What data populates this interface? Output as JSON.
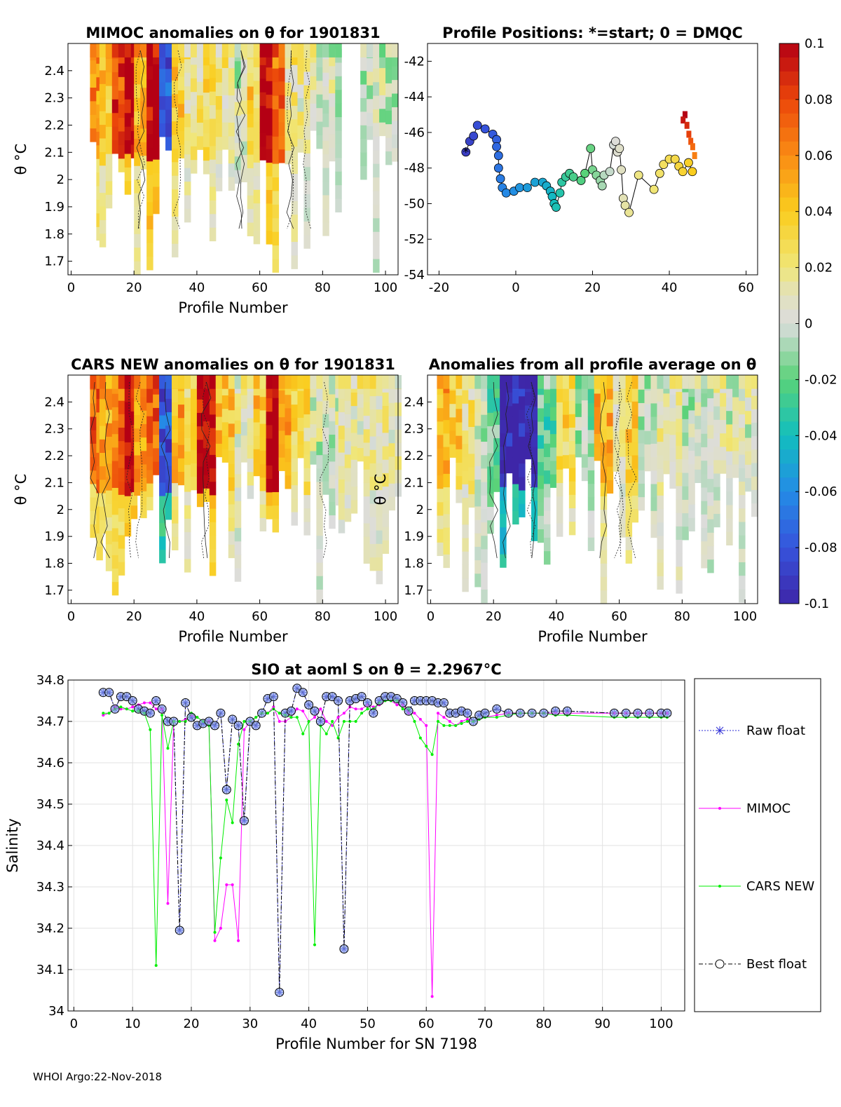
{
  "footer": "WHOI Argo:22-Nov-2018",
  "colorbar": {
    "ticks": [
      "0.1",
      "0.08",
      "0.06",
      "0.04",
      "0.02",
      "0",
      "-0.02",
      "-0.04",
      "-0.06",
      "-0.08",
      "-0.1"
    ],
    "range": [
      -0.1,
      0.1
    ]
  },
  "chart_data": [
    {
      "type": "heatmap",
      "title": "MIMOC anomalies on θ  for 1901831",
      "xlabel": "Profile Number",
      "ylabel": "θ °C",
      "xlim": [
        -1,
        104
      ],
      "ylim": [
        1.65,
        2.5
      ],
      "xticks": [
        "0",
        "20",
        "40",
        "60",
        "80",
        "100"
      ],
      "yticks": [
        "1.7",
        "1.8",
        "1.9",
        "2",
        "2.1",
        "2.2",
        "2.3",
        "2.4"
      ],
      "columns": [
        {
          "range": [
            6,
            9
          ],
          "value": 0.06
        },
        {
          "range": [
            9,
            13
          ],
          "value": 0.04
        },
        {
          "range": [
            13,
            17
          ],
          "value": 0.08
        },
        {
          "range": [
            17,
            20
          ],
          "value": 0.1
        },
        {
          "range": [
            20,
            24
          ],
          "value": 0.05
        },
        {
          "range": [
            24,
            28
          ],
          "value": 0.1
        },
        {
          "range": [
            28,
            32
          ],
          "value": -0.08
        },
        {
          "range": [
            32,
            36
          ],
          "value": 0.04
        },
        {
          "range": [
            36,
            42
          ],
          "value": 0.02
        },
        {
          "range": [
            42,
            46
          ],
          "value": 0.03
        },
        {
          "range": [
            46,
            52
          ],
          "value": 0.02
        },
        {
          "range": [
            52,
            56
          ],
          "value": 0.0
        },
        {
          "range": [
            56,
            60
          ],
          "value": 0.035
        },
        {
          "range": [
            60,
            64
          ],
          "value": 0.1
        },
        {
          "range": [
            64,
            68
          ],
          "value": 0.07
        },
        {
          "range": [
            68,
            72
          ],
          "value": 0.02
        },
        {
          "range": [
            72,
            78
          ],
          "value": 0.01
        },
        {
          "range": [
            78,
            85
          ],
          "value": 0.0
        },
        {
          "range": [
            92,
            104
          ],
          "value": 0.0
        }
      ]
    },
    {
      "type": "scatter",
      "title": "Profile Positions: *=start; 0 = DMQC",
      "xlim": [
        -23,
        63
      ],
      "ylim": [
        -54,
        -41
      ],
      "xticks": [
        "-20",
        "0",
        "20",
        "40",
        "60"
      ],
      "yticks": [
        "-42",
        "-44",
        "-46",
        "-48",
        "-50",
        "-52",
        "-54"
      ],
      "points": [
        [
          -13,
          -47.1
        ],
        [
          -12,
          -46.5
        ],
        [
          -11,
          -46.2
        ],
        [
          -10,
          -45.6
        ],
        [
          -8,
          -45.8
        ],
        [
          -6,
          -46.1
        ],
        [
          -5,
          -46.4
        ],
        [
          -5,
          -46.8
        ],
        [
          -4.5,
          -47.3
        ],
        [
          -4.5,
          -48
        ],
        [
          -4,
          -48.6
        ],
        [
          -3.5,
          -49.1
        ],
        [
          -2.5,
          -49.4
        ],
        [
          -0.5,
          -49.3
        ],
        [
          1,
          -49.1
        ],
        [
          3,
          -49.1
        ],
        [
          5,
          -48.8
        ],
        [
          7,
          -48.8
        ],
        [
          8,
          -49
        ],
        [
          9,
          -49.3
        ],
        [
          9.5,
          -49.6
        ],
        [
          10,
          -50
        ],
        [
          10.5,
          -50.2
        ],
        [
          11.5,
          -49.4
        ],
        [
          12,
          -48.8
        ],
        [
          13,
          -48.5
        ],
        [
          14,
          -48.3
        ],
        [
          15,
          -48.5
        ],
        [
          17,
          -48.7
        ],
        [
          18,
          -48.3
        ],
        [
          19.5,
          -46.9
        ],
        [
          20,
          -48.1
        ],
        [
          21,
          -48.4
        ],
        [
          22,
          -48.7
        ],
        [
          22.5,
          -49
        ],
        [
          23,
          -48.4
        ],
        [
          24.5,
          -48.2
        ],
        [
          25.5,
          -46.7
        ],
        [
          26,
          -46.5
        ],
        [
          26.5,
          -47.1
        ],
        [
          27,
          -46.9
        ],
        [
          27.5,
          -48.1
        ],
        [
          28,
          -49.7
        ],
        [
          28.5,
          -50.1
        ],
        [
          29.5,
          -50.5
        ],
        [
          32,
          -48.4
        ],
        [
          36,
          -49.2
        ],
        [
          37.5,
          -48.3
        ],
        [
          38.5,
          -47.8
        ],
        [
          40,
          -47.5
        ],
        [
          41.5,
          -47.5
        ],
        [
          42.5,
          -47.9
        ],
        [
          43.5,
          -48.2
        ],
        [
          45,
          -47.7
        ],
        [
          46,
          -48.2
        ]
      ]
    },
    {
      "type": "heatmap",
      "title": "CARS NEW anomalies on θ for 1901831",
      "xlabel": "Profile Number",
      "ylabel": "θ °C",
      "xlim": [
        -1,
        104
      ],
      "ylim": [
        1.65,
        2.5
      ],
      "xticks": [
        "0",
        "20",
        "40",
        "60",
        "80",
        "100"
      ],
      "yticks": [
        "1.7",
        "1.8",
        "1.9",
        "2",
        "2.1",
        "2.2",
        "2.3",
        "2.4"
      ],
      "columns": [
        {
          "range": [
            6,
            9
          ],
          "value": 0.07
        },
        {
          "range": [
            9,
            13
          ],
          "value": 0.05
        },
        {
          "range": [
            13,
            17
          ],
          "value": 0.07
        },
        {
          "range": [
            17,
            20
          ],
          "value": 0.1
        },
        {
          "range": [
            20,
            24
          ],
          "value": 0.06
        },
        {
          "range": [
            24,
            28
          ],
          "value": 0.07
        },
        {
          "range": [
            28,
            32
          ],
          "value": -0.08
        },
        {
          "range": [
            32,
            36
          ],
          "value": 0.05
        },
        {
          "range": [
            36,
            40
          ],
          "value": 0.03
        },
        {
          "range": [
            40,
            46
          ],
          "value": 0.1
        },
        {
          "range": [
            46,
            52
          ],
          "value": 0.04
        },
        {
          "range": [
            52,
            58
          ],
          "value": 0.01
        },
        {
          "range": [
            58,
            62
          ],
          "value": 0.04
        },
        {
          "range": [
            62,
            66
          ],
          "value": 0.1
        },
        {
          "range": [
            66,
            70
          ],
          "value": 0.05
        },
        {
          "range": [
            70,
            76
          ],
          "value": 0.025
        },
        {
          "range": [
            76,
            85
          ],
          "value": 0.0
        },
        {
          "range": [
            85,
            104
          ],
          "value": 0.015
        }
      ]
    },
    {
      "type": "heatmap",
      "title": "Anomalies from all profile average on θ",
      "xlabel": "Profile Number",
      "ylabel": "θ °C",
      "xlim": [
        -1,
        104
      ],
      "ylim": [
        1.65,
        2.5
      ],
      "xticks": [
        "0",
        "20",
        "40",
        "60",
        "80",
        "100"
      ],
      "yticks": [
        "1.7",
        "1.8",
        "1.9",
        "2",
        "2.1",
        "2.2",
        "2.3",
        "2.4"
      ],
      "columns": [
        {
          "range": [
            2,
            6
          ],
          "value": 0.05
        },
        {
          "range": [
            6,
            10
          ],
          "value": 0.035
        },
        {
          "range": [
            10,
            14
          ],
          "value": 0.02
        },
        {
          "range": [
            14,
            18
          ],
          "value": 0.0
        },
        {
          "range": [
            18,
            22
          ],
          "value": -0.02
        },
        {
          "range": [
            22,
            26
          ],
          "value": -0.1
        },
        {
          "range": [
            26,
            30
          ],
          "value": -0.1
        },
        {
          "range": [
            30,
            34
          ],
          "value": -0.1
        },
        {
          "range": [
            34,
            40
          ],
          "value": -0.02
        },
        {
          "range": [
            40,
            46
          ],
          "value": 0.03
        },
        {
          "range": [
            46,
            52
          ],
          "value": -0.01
        },
        {
          "range": [
            52,
            58
          ],
          "value": 0.045
        },
        {
          "range": [
            58,
            62
          ],
          "value": 0.01
        },
        {
          "range": [
            62,
            66
          ],
          "value": 0.035
        },
        {
          "range": [
            66,
            72
          ],
          "value": 0.0
        },
        {
          "range": [
            72,
            80
          ],
          "value": 0.01
        },
        {
          "range": [
            80,
            90
          ],
          "value": 0.0
        },
        {
          "range": [
            90,
            104
          ],
          "value": 0.005
        }
      ]
    },
    {
      "type": "line",
      "title": "SIO at aoml S on θ = 2.2967°C",
      "xlabel": "Profile Number for SN 7198",
      "ylabel": "Salinity",
      "xlim": [
        -1,
        104
      ],
      "ylim": [
        34,
        34.8
      ],
      "xticks": [
        "0",
        "10",
        "20",
        "30",
        "40",
        "50",
        "60",
        "70",
        "80",
        "90",
        "100"
      ],
      "yticks": [
        "34",
        "34.1",
        "34.2",
        "34.3",
        "34.4",
        "34.5",
        "34.6",
        "34.7",
        "34.8"
      ],
      "x": [
        5,
        6,
        7,
        8,
        9,
        10,
        11,
        12,
        13,
        14,
        15,
        16,
        17,
        18,
        19,
        20,
        21,
        22,
        23,
        24,
        25,
        26,
        27,
        28,
        29,
        30,
        31,
        32,
        33,
        34,
        35,
        36,
        37,
        38,
        39,
        40,
        41,
        42,
        43,
        44,
        45,
        46,
        47,
        48,
        49,
        50,
        51,
        52,
        53,
        54,
        55,
        56,
        57,
        58,
        59,
        60,
        61,
        62,
        63,
        64,
        65,
        66,
        67,
        68,
        69,
        70,
        72,
        74,
        76,
        78,
        80,
        82,
        84,
        92,
        94,
        96,
        98,
        100,
        101
      ],
      "legend": [
        "Raw float",
        "MIMOC",
        "CARS NEW",
        "Best float"
      ],
      "series": [
        {
          "name": "Raw float",
          "values": [
            34.77,
            34.77,
            34.73,
            34.76,
            34.76,
            34.75,
            34.73,
            34.725,
            34.72,
            34.75,
            34.73,
            34.7,
            34.7,
            34.195,
            34.745,
            34.71,
            34.69,
            34.695,
            34.7,
            34.69,
            34.72,
            34.535,
            34.705,
            34.69,
            34.46,
            34.7,
            34.69,
            34.72,
            34.755,
            34.76,
            34.045,
            34.72,
            34.725,
            34.78,
            34.77,
            34.74,
            34.725,
            34.7,
            34.76,
            34.76,
            34.75,
            34.15,
            34.75,
            34.755,
            34.76,
            34.745,
            34.72,
            34.75,
            34.76,
            34.76,
            34.755,
            34.745,
            34.725,
            34.75,
            34.75,
            34.75,
            34.75,
            34.745,
            34.745,
            34.72,
            34.72,
            34.725,
            34.72,
            34.7,
            34.715,
            34.72,
            34.73,
            34.72,
            34.72,
            34.72,
            34.72,
            34.725,
            34.725,
            34.72,
            34.72,
            34.72,
            34.72,
            34.72,
            34.72
          ]
        },
        {
          "name": "MIMOC",
          "values": [
            34.715,
            34.72,
            34.735,
            34.73,
            34.73,
            34.735,
            34.74,
            34.745,
            34.745,
            34.73,
            34.73,
            34.26,
            34.7,
            34.7,
            34.705,
            34.715,
            34.71,
            34.7,
            34.7,
            34.17,
            34.2,
            34.305,
            34.305,
            34.17,
            34.68,
            34.7,
            34.71,
            34.72,
            34.72,
            34.735,
            34.7,
            34.7,
            34.71,
            34.73,
            34.725,
            34.7,
            34.71,
            34.73,
            34.7,
            34.69,
            34.71,
            34.72,
            34.735,
            34.73,
            34.73,
            34.74,
            34.735,
            34.74,
            34.75,
            34.75,
            34.74,
            34.74,
            34.72,
            34.72,
            34.705,
            34.69,
            34.035,
            34.72,
            34.71,
            34.7,
            34.69,
            34.7,
            34.705,
            34.7,
            34.705,
            34.71,
            34.715,
            34.72,
            34.72,
            34.72,
            34.72,
            34.72,
            34.72,
            34.72,
            34.72,
            34.72,
            34.72,
            34.72,
            34.72
          ]
        },
        {
          "name": "CARS NEW",
          "values": [
            34.72,
            34.72,
            34.73,
            34.735,
            34.73,
            34.725,
            34.725,
            34.72,
            34.68,
            34.11,
            34.715,
            34.635,
            34.7,
            34.7,
            34.7,
            34.72,
            34.71,
            34.7,
            34.69,
            34.19,
            34.37,
            34.51,
            34.455,
            34.645,
            34.7,
            34.7,
            34.71,
            34.72,
            34.72,
            34.73,
            34.72,
            34.715,
            34.71,
            34.71,
            34.67,
            34.7,
            34.16,
            34.69,
            34.67,
            34.7,
            34.66,
            34.7,
            34.7,
            34.7,
            34.72,
            34.73,
            34.73,
            34.745,
            34.75,
            34.75,
            34.75,
            34.73,
            34.73,
            34.7,
            34.66,
            34.64,
            34.62,
            34.7,
            34.69,
            34.69,
            34.69,
            34.695,
            34.7,
            34.7,
            34.705,
            34.71,
            34.71,
            34.715,
            34.72,
            34.72,
            34.72,
            34.715,
            34.715,
            34.71,
            34.71,
            34.71,
            34.71,
            34.71,
            34.71
          ]
        },
        {
          "name": "Best float",
          "values": [
            34.77,
            34.77,
            34.73,
            34.76,
            34.76,
            34.75,
            34.73,
            34.725,
            34.72,
            34.75,
            34.73,
            34.7,
            34.7,
            34.195,
            34.745,
            34.71,
            34.69,
            34.695,
            34.7,
            34.69,
            34.72,
            34.535,
            34.705,
            34.69,
            34.46,
            34.7,
            34.69,
            34.72,
            34.755,
            34.76,
            34.045,
            34.72,
            34.725,
            34.78,
            34.77,
            34.74,
            34.725,
            34.7,
            34.76,
            34.76,
            34.75,
            34.15,
            34.75,
            34.755,
            34.76,
            34.745,
            34.72,
            34.75,
            34.76,
            34.76,
            34.755,
            34.745,
            34.725,
            34.75,
            34.75,
            34.75,
            34.75,
            34.745,
            34.745,
            34.72,
            34.72,
            34.725,
            34.72,
            34.7,
            34.715,
            34.72,
            34.73,
            34.72,
            34.72,
            34.72,
            34.72,
            34.725,
            34.725,
            34.72,
            34.72,
            34.72,
            34.72,
            34.72,
            34.72
          ]
        }
      ]
    }
  ]
}
